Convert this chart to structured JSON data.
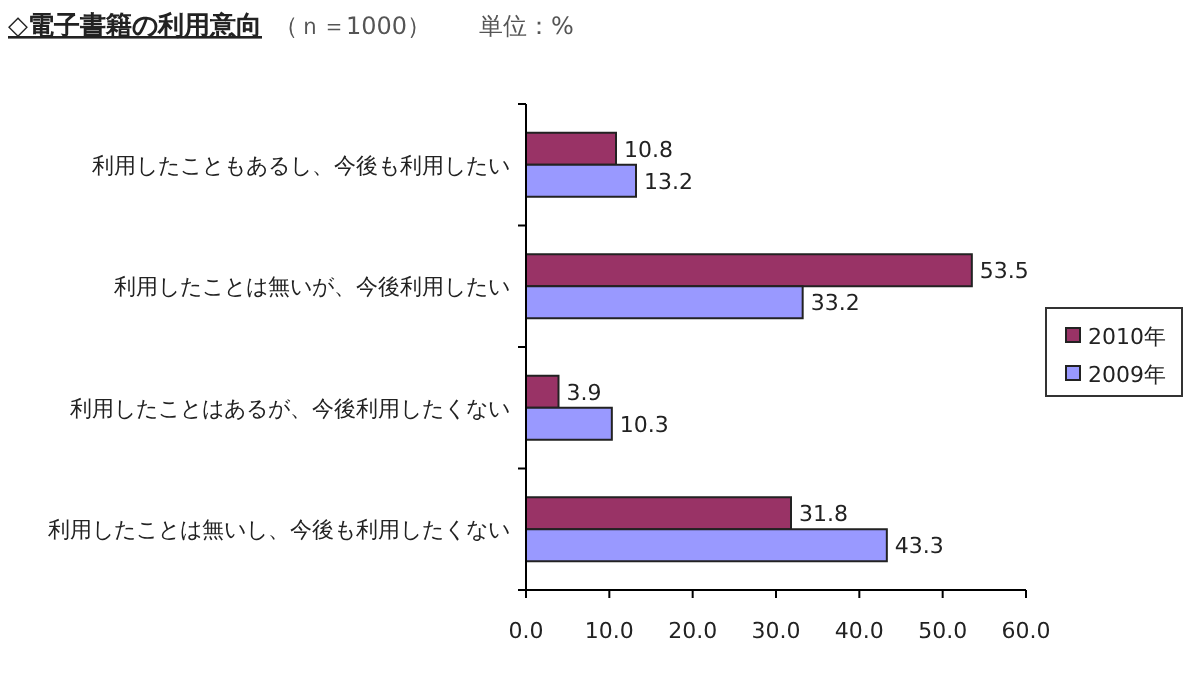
{
  "chart_data": {
    "type": "bar",
    "orientation": "horizontal",
    "title": "◇電子書籍の利用意向",
    "subtitle": "（ｎ＝1000）　　単位：%",
    "categories": [
      "利用したこともあるし、今後も利用したい",
      "利用したことは無いが、今後利用したい",
      "利用したことはあるが、今後利用したくない",
      "利用したことは無いし、今後も利用したくない"
    ],
    "series": [
      {
        "name": "2010年",
        "color": "#993366",
        "values": [
          10.8,
          53.5,
          3.9,
          31.8
        ]
      },
      {
        "name": "2009年",
        "color": "#9999ff",
        "values": [
          13.2,
          33.2,
          10.3,
          43.3
        ]
      }
    ],
    "xlim": [
      0,
      60
    ],
    "xticks": [
      {
        "value": 0,
        "label": "0.0"
      },
      {
        "value": 10,
        "label": "10.0"
      },
      {
        "value": 20,
        "label": "20.0"
      },
      {
        "value": 30,
        "label": "30.0"
      },
      {
        "value": 40,
        "label": "40.0"
      },
      {
        "value": 50,
        "label": "50.0"
      },
      {
        "value": 60,
        "label": "60.0"
      }
    ],
    "data_labels": true,
    "legend": "right",
    "grid": false
  }
}
